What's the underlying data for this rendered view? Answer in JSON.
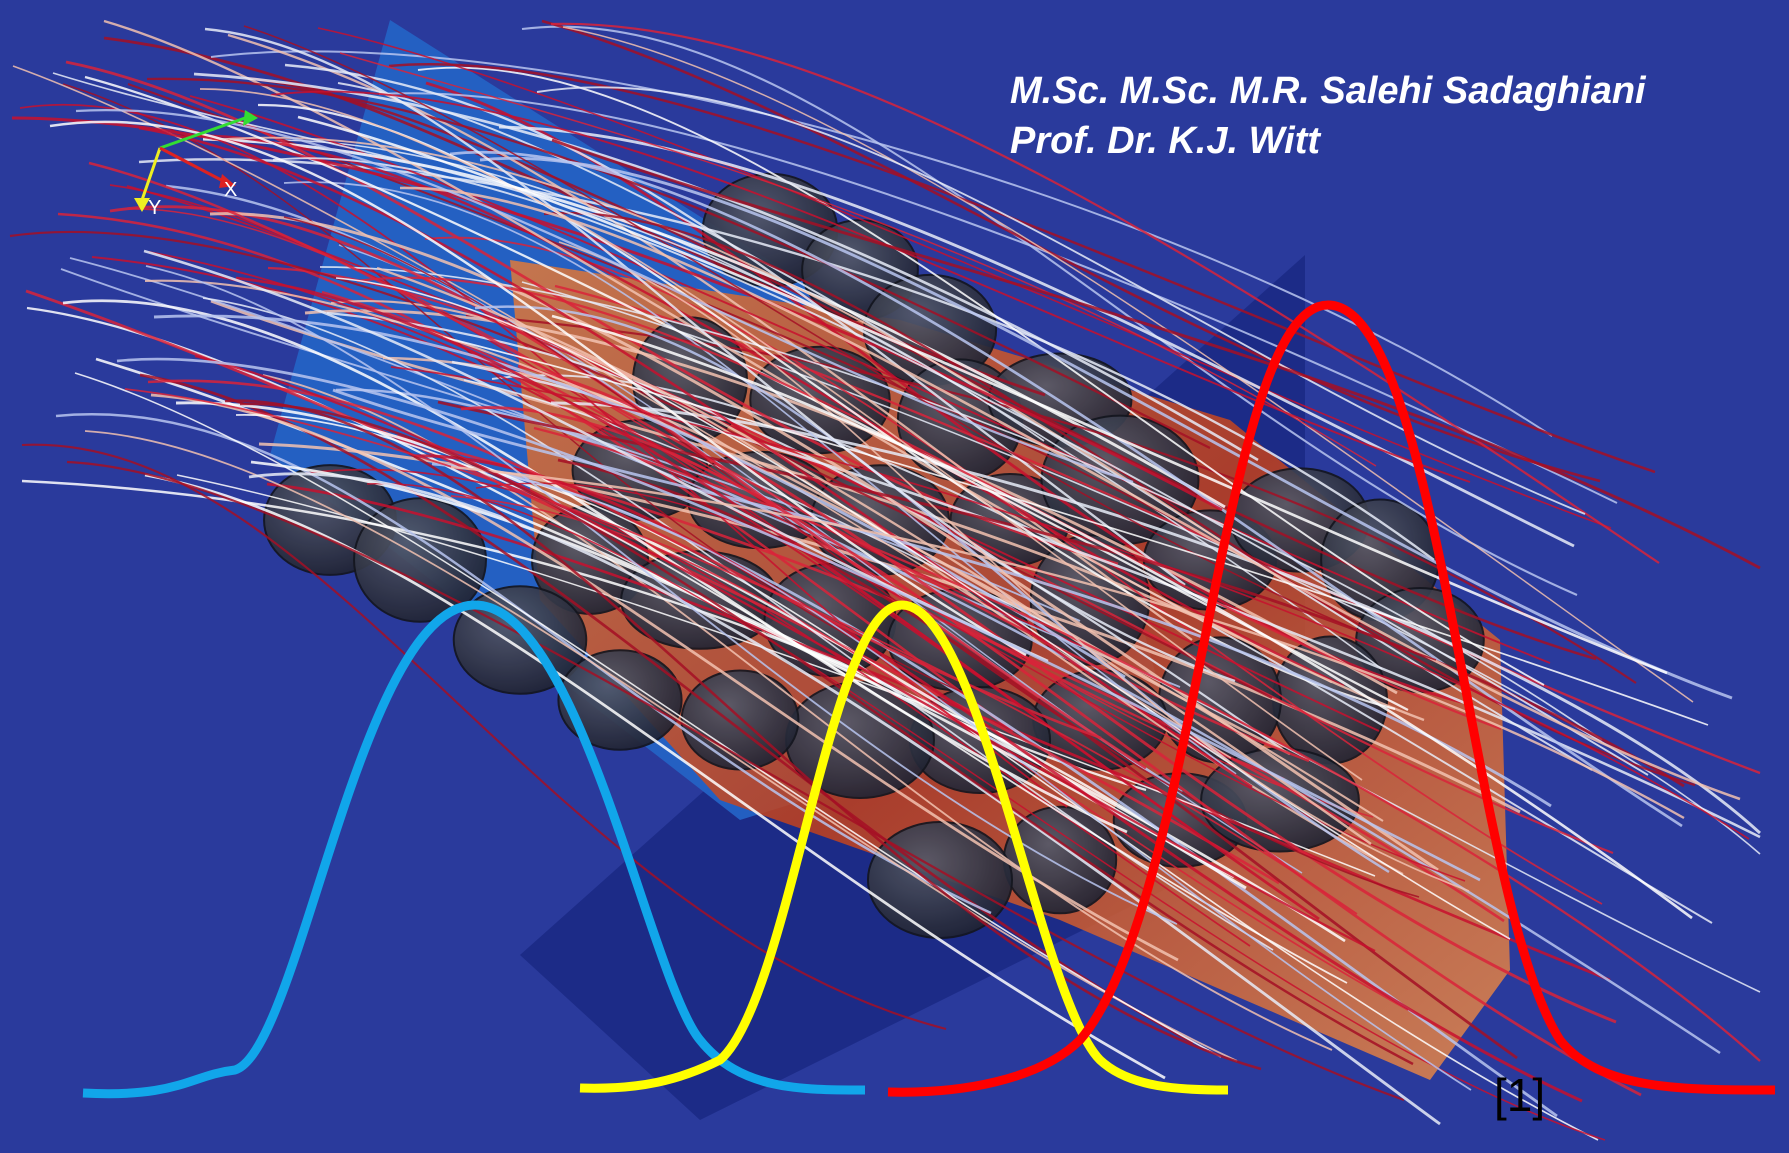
{
  "credits": {
    "line1": "M.Sc. M.Sc. M.R. Salehi Sadaghiani",
    "line2": "Prof. Dr. K.J. Witt"
  },
  "reference_label": "[1]",
  "axis_labels": {
    "x": "X",
    "y": "Y"
  },
  "colors": {
    "background": "#2a3a9c",
    "curve_blue": "#11a6ea",
    "curve_yellow": "#ffff00",
    "curve_red": "#ff0000",
    "stream_red": "#c8102e",
    "stream_white": "#e8ecf8",
    "grain": "#2c3144",
    "field_orange": "#d45a24"
  },
  "curves": [
    {
      "name": "blue-distribution-curve",
      "color": "#11a6ea"
    },
    {
      "name": "yellow-distribution-curve",
      "color": "#ffff00"
    },
    {
      "name": "red-distribution-curve",
      "color": "#ff0000"
    }
  ]
}
